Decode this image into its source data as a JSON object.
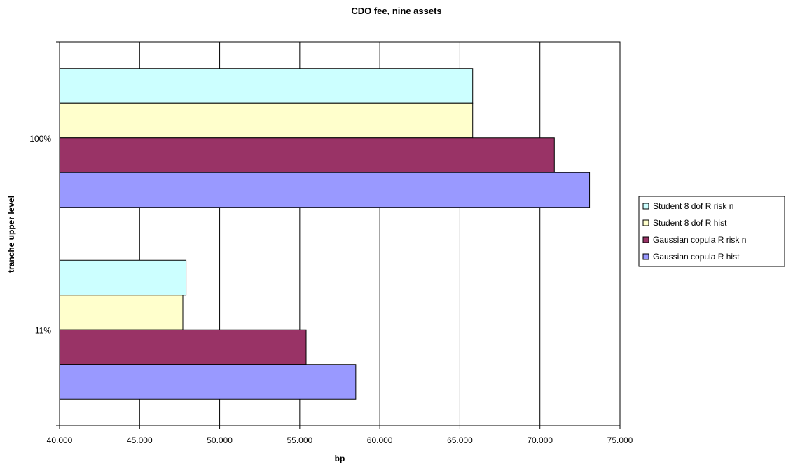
{
  "chart_data": {
    "type": "bar",
    "orientation": "horizontal",
    "title": "CDO fee, nine assets",
    "xlabel": "bp",
    "ylabel": "tranche upper level",
    "categories": [
      "100%",
      "11%"
    ],
    "series": [
      {
        "name": "Student 8 dof R risk n",
        "color": "#ccffff",
        "values": [
          65.8,
          47.9
        ]
      },
      {
        "name": "Student 8 dof R hist",
        "color": "#ffffcc",
        "values": [
          65.8,
          47.7
        ]
      },
      {
        "name": "Gaussian copula R risk n",
        "color": "#993366",
        "values": [
          70.9,
          55.4
        ]
      },
      {
        "name": "Gaussian copula R hist",
        "color": "#9999ff",
        "values": [
          73.1,
          58.5
        ]
      }
    ],
    "xlim": [
      40,
      75
    ],
    "xticks": [
      "40.000",
      "45.000",
      "50.000",
      "55.000",
      "60.000",
      "65.000",
      "70.000",
      "75.000"
    ],
    "grid": "vertical",
    "legend": "right"
  }
}
